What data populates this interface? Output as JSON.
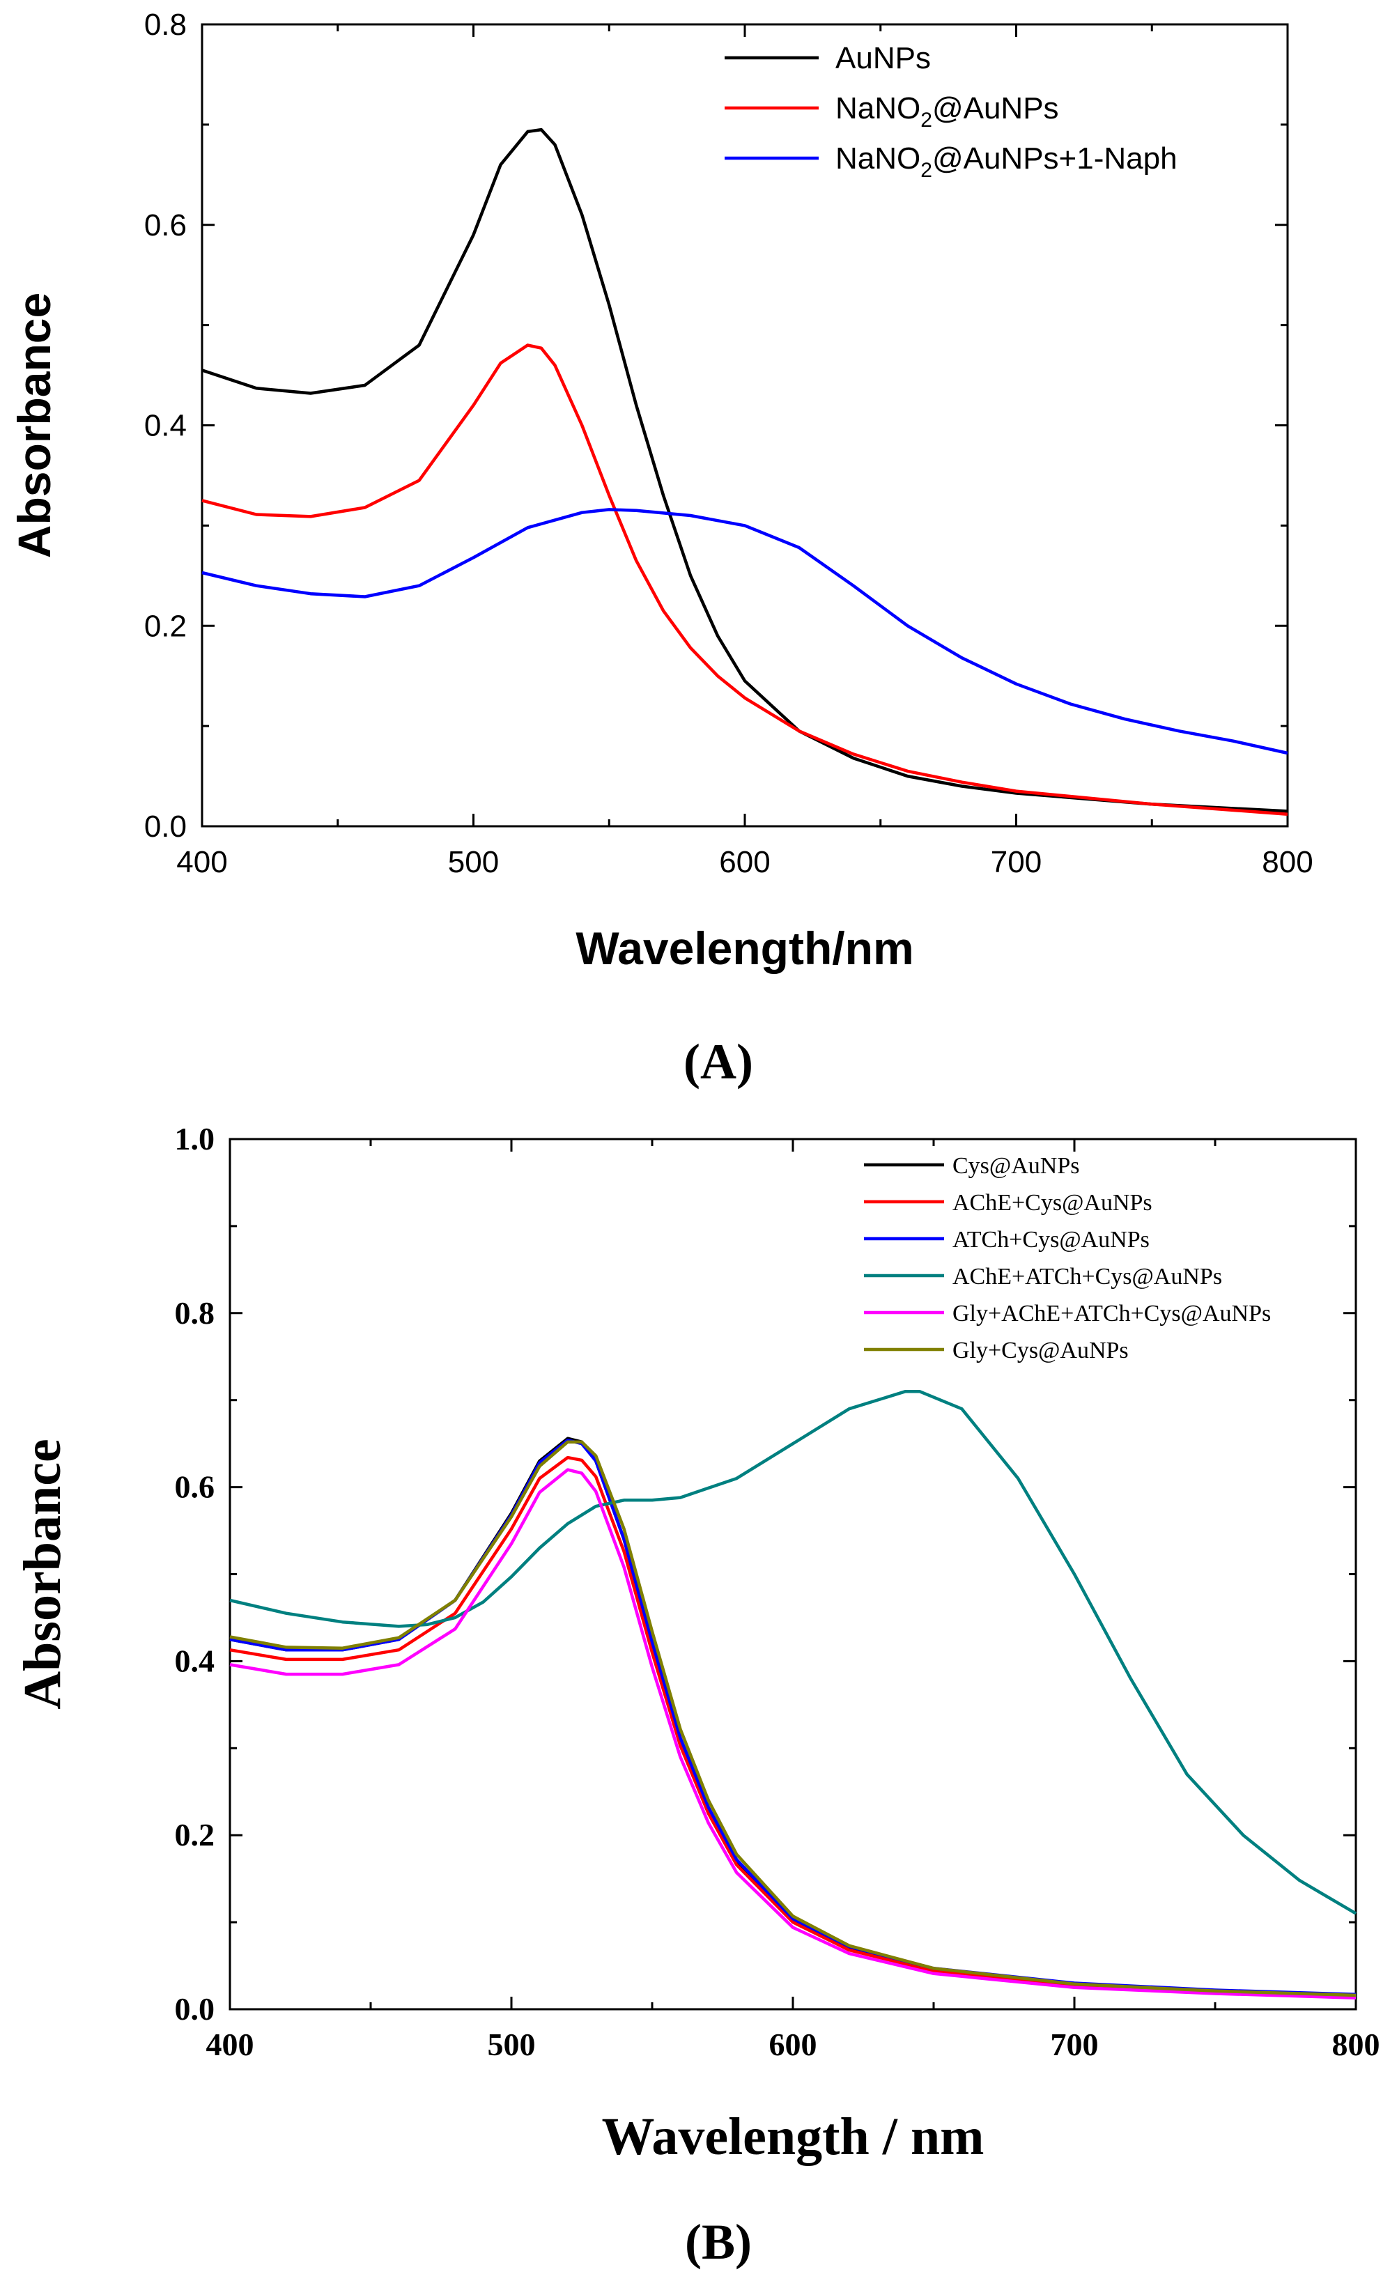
{
  "chart_data": [
    {
      "type": "line",
      "panel_label": "(A)",
      "xlabel": "Wavelength/nm",
      "ylabel": "Absorbance",
      "xlim": [
        400,
        800
      ],
      "ylim": [
        0.0,
        0.8
      ],
      "xticks": [
        400,
        500,
        600,
        700,
        800
      ],
      "xtick_labels": [
        "400",
        "500",
        "600",
        "700",
        "800"
      ],
      "yticks": [
        0.0,
        0.2,
        0.4,
        0.6,
        0.8
      ],
      "ytick_labels": [
        "0.0",
        "0.2",
        "0.4",
        "0.6",
        "0.8"
      ],
      "legend_position": "top-right",
      "series": [
        {
          "name": "AuNPs",
          "label_main": "AuNPs",
          "label_sub": "",
          "label_rest": "",
          "color": "#000000",
          "x": [
            400,
            420,
            440,
            460,
            480,
            500,
            510,
            520,
            525,
            530,
            540,
            550,
            560,
            570,
            580,
            590,
            600,
            620,
            640,
            660,
            680,
            700,
            750,
            800
          ],
          "y": [
            0.455,
            0.437,
            0.432,
            0.44,
            0.48,
            0.59,
            0.66,
            0.693,
            0.695,
            0.68,
            0.61,
            0.52,
            0.42,
            0.33,
            0.25,
            0.19,
            0.145,
            0.095,
            0.068,
            0.05,
            0.04,
            0.033,
            0.022,
            0.015
          ]
        },
        {
          "name": "NaNO2@AuNPs",
          "label_main": "NaNO",
          "label_sub": "2",
          "label_rest": "@AuNPs",
          "color": "#ff0000",
          "x": [
            400,
            420,
            440,
            460,
            480,
            500,
            510,
            520,
            525,
            530,
            540,
            550,
            560,
            570,
            580,
            590,
            600,
            620,
            640,
            660,
            680,
            700,
            750,
            800
          ],
          "y": [
            0.325,
            0.311,
            0.309,
            0.318,
            0.345,
            0.42,
            0.462,
            0.48,
            0.477,
            0.46,
            0.4,
            0.33,
            0.265,
            0.215,
            0.178,
            0.15,
            0.128,
            0.095,
            0.072,
            0.055,
            0.044,
            0.035,
            0.022,
            0.012
          ]
        },
        {
          "name": "NaNO2@AuNPs+1-Naph",
          "label_main": "NaNO",
          "label_sub": "2",
          "label_rest": "@AuNPs+1-Naph",
          "color": "#0000ff",
          "x": [
            400,
            420,
            440,
            460,
            480,
            500,
            520,
            540,
            550,
            560,
            580,
            600,
            620,
            640,
            660,
            680,
            700,
            720,
            740,
            760,
            780,
            800
          ],
          "y": [
            0.253,
            0.24,
            0.232,
            0.229,
            0.24,
            0.268,
            0.298,
            0.313,
            0.316,
            0.315,
            0.31,
            0.3,
            0.278,
            0.24,
            0.2,
            0.168,
            0.142,
            0.122,
            0.107,
            0.095,
            0.085,
            0.073
          ]
        }
      ]
    },
    {
      "type": "line",
      "panel_label": "(B)",
      "xlabel": "Wavelength / nm",
      "ylabel": "Absorbance",
      "xlim": [
        400,
        800
      ],
      "ylim": [
        0.0,
        1.0
      ],
      "xticks": [
        400,
        500,
        600,
        700,
        800
      ],
      "xtick_labels": [
        "400",
        "500",
        "600",
        "700",
        "800"
      ],
      "yticks": [
        0.0,
        0.2,
        0.4,
        0.6,
        0.8,
        1.0
      ],
      "ytick_labels": [
        "0.0",
        "0.2",
        "0.4",
        "0.6",
        "0.8",
        "1.0"
      ],
      "legend_position": "top-right",
      "series": [
        {
          "name": "Cys@AuNPs",
          "color": "#000000",
          "x": [
            400,
            420,
            440,
            460,
            480,
            500,
            510,
            520,
            525,
            530,
            540,
            550,
            560,
            570,
            580,
            600,
            620,
            650,
            700,
            750,
            800
          ],
          "y": [
            0.425,
            0.413,
            0.413,
            0.425,
            0.47,
            0.57,
            0.63,
            0.656,
            0.652,
            0.63,
            0.54,
            0.42,
            0.31,
            0.23,
            0.17,
            0.102,
            0.07,
            0.045,
            0.028,
            0.02,
            0.015
          ]
        },
        {
          "name": "AChE+Cys@AuNPs",
          "color": "#ff0000",
          "x": [
            400,
            420,
            440,
            460,
            480,
            500,
            510,
            520,
            525,
            530,
            540,
            550,
            560,
            570,
            580,
            600,
            620,
            650,
            700,
            750,
            800
          ],
          "y": [
            0.413,
            0.402,
            0.402,
            0.413,
            0.455,
            0.552,
            0.61,
            0.634,
            0.631,
            0.612,
            0.526,
            0.41,
            0.303,
            0.225,
            0.166,
            0.1,
            0.068,
            0.044,
            0.027,
            0.019,
            0.014
          ]
        },
        {
          "name": "ATCh+Cys@AuNPs",
          "color": "#0000ff",
          "x": [
            400,
            420,
            440,
            460,
            480,
            500,
            510,
            520,
            525,
            530,
            540,
            550,
            560,
            570,
            580,
            600,
            620,
            650,
            700,
            750,
            800
          ],
          "y": [
            0.425,
            0.413,
            0.413,
            0.425,
            0.47,
            0.568,
            0.628,
            0.654,
            0.65,
            0.63,
            0.54,
            0.422,
            0.312,
            0.232,
            0.172,
            0.104,
            0.072,
            0.047,
            0.03,
            0.022,
            0.017
          ]
        },
        {
          "name": "AChE+ATCh+Cys@AuNPs",
          "color": "#008080",
          "x": [
            400,
            420,
            440,
            460,
            470,
            480,
            490,
            500,
            510,
            520,
            530,
            540,
            550,
            560,
            580,
            600,
            620,
            640,
            645,
            660,
            680,
            700,
            720,
            740,
            760,
            780,
            800
          ],
          "y": [
            0.47,
            0.455,
            0.445,
            0.44,
            0.442,
            0.45,
            0.468,
            0.497,
            0.53,
            0.558,
            0.578,
            0.585,
            0.585,
            0.588,
            0.61,
            0.65,
            0.69,
            0.71,
            0.71,
            0.69,
            0.61,
            0.5,
            0.38,
            0.27,
            0.2,
            0.148,
            0.11
          ]
        },
        {
          "name": "Gly+AChE+ATCh+Cys@AuNPs",
          "color": "#ff00ff",
          "x": [
            400,
            420,
            440,
            460,
            480,
            500,
            510,
            520,
            525,
            530,
            540,
            550,
            560,
            570,
            580,
            600,
            620,
            650,
            700,
            750,
            800
          ],
          "y": [
            0.396,
            0.385,
            0.385,
            0.396,
            0.437,
            0.535,
            0.594,
            0.62,
            0.616,
            0.595,
            0.508,
            0.393,
            0.29,
            0.214,
            0.157,
            0.094,
            0.064,
            0.041,
            0.025,
            0.018,
            0.013
          ]
        },
        {
          "name": "Gly+Cys@AuNPs",
          "color": "#808000",
          "x": [
            400,
            420,
            440,
            460,
            480,
            500,
            510,
            520,
            525,
            530,
            540,
            550,
            560,
            570,
            580,
            600,
            620,
            650,
            700,
            750,
            800
          ],
          "y": [
            0.428,
            0.416,
            0.415,
            0.427,
            0.47,
            0.566,
            0.624,
            0.652,
            0.652,
            0.636,
            0.552,
            0.434,
            0.322,
            0.24,
            0.178,
            0.107,
            0.073,
            0.047,
            0.029,
            0.021,
            0.016
          ]
        }
      ]
    }
  ]
}
